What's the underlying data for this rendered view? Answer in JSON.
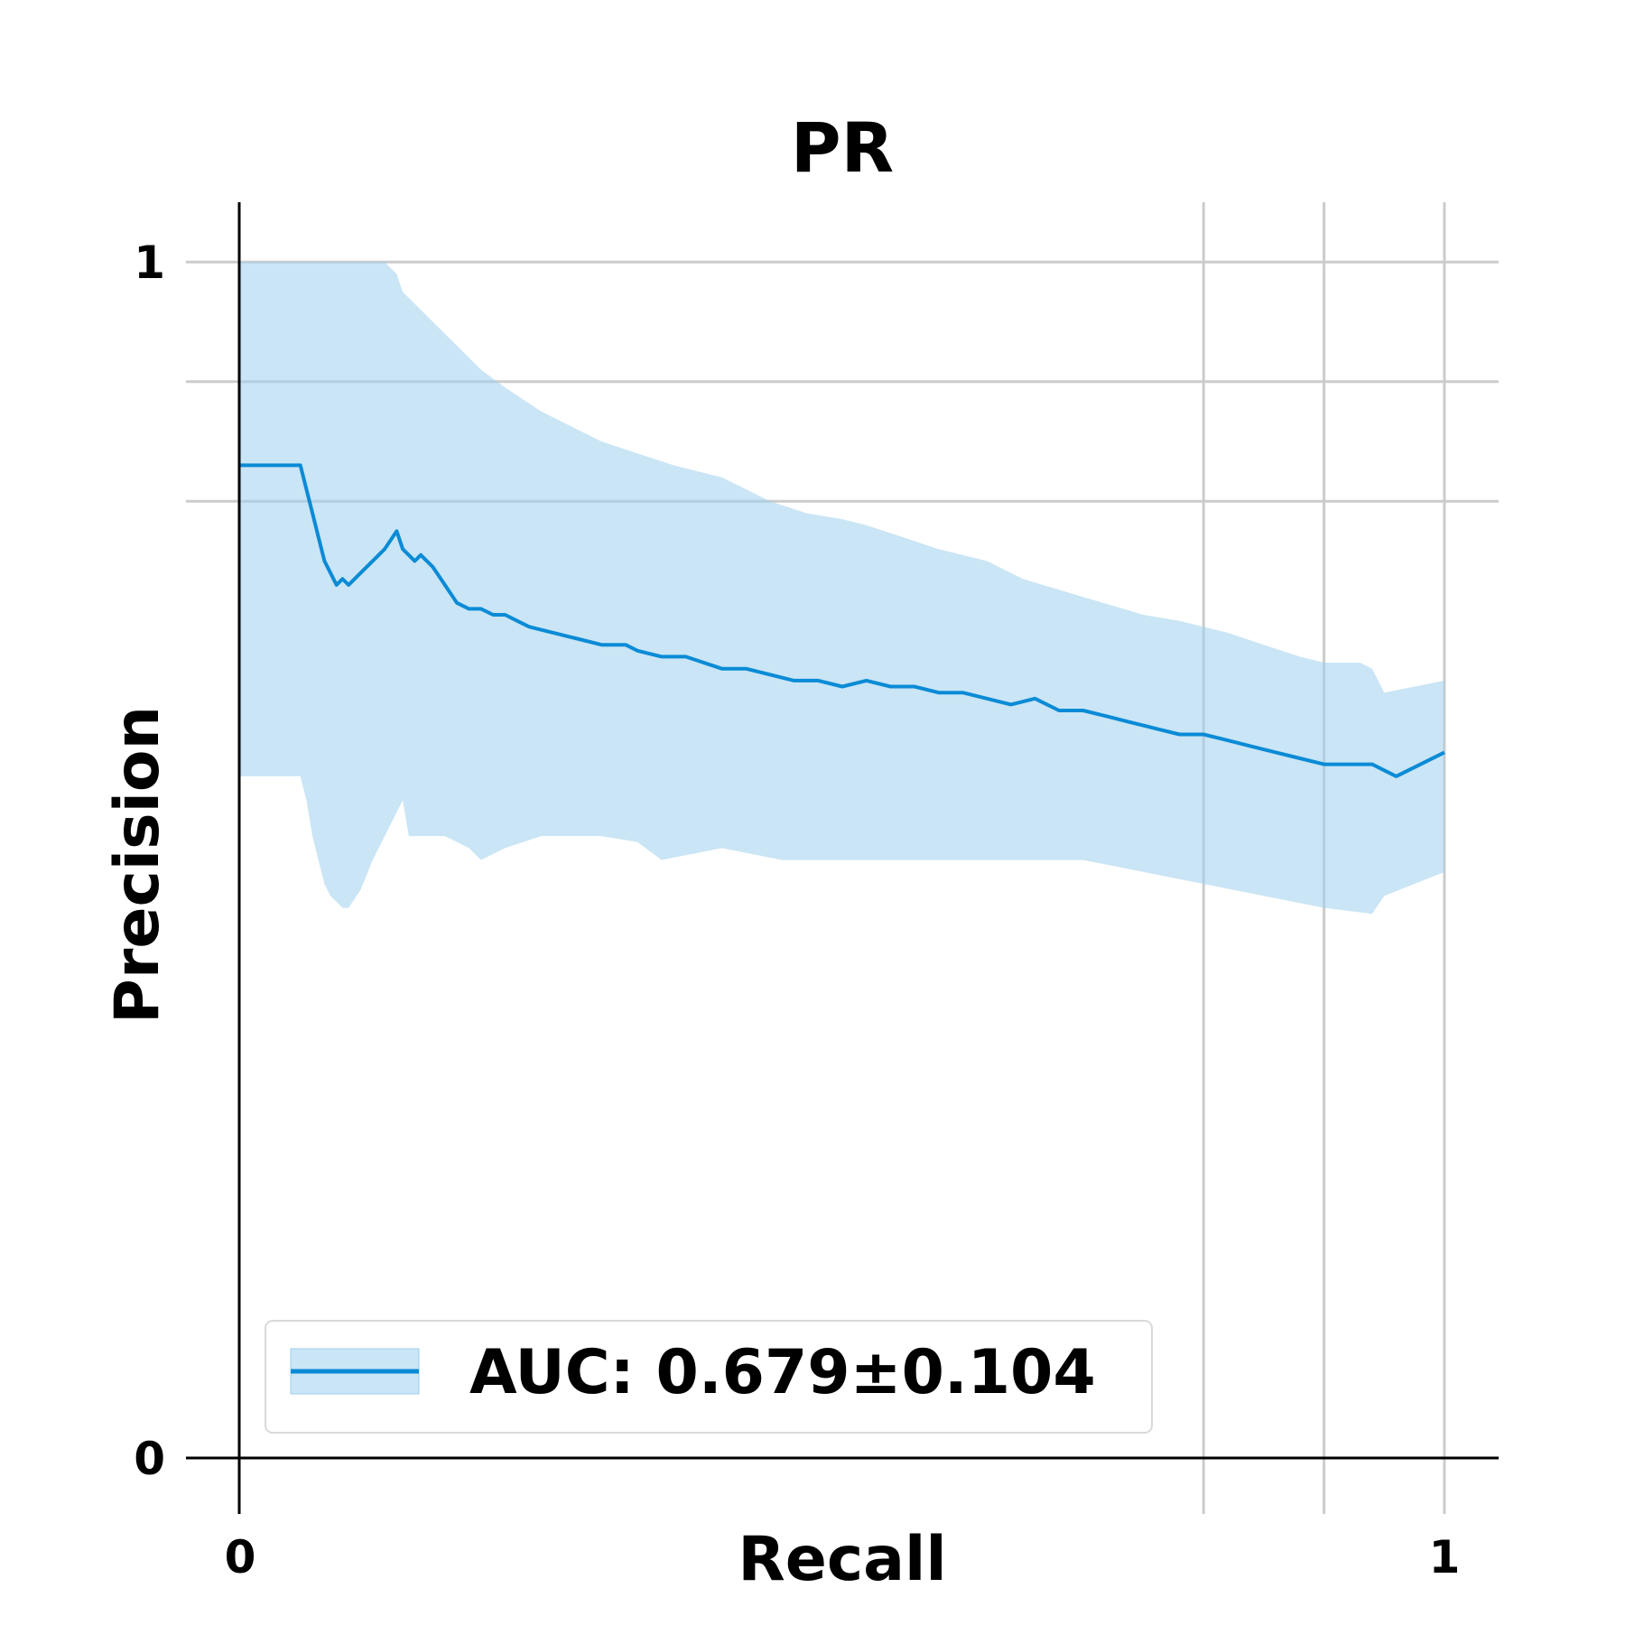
{
  "chart_data": {
    "type": "line",
    "title": "PR",
    "xlabel": "Recall",
    "ylabel": "Precision",
    "xlim": [
      -0.045,
      1.045
    ],
    "ylim": [
      0,
      1.05
    ],
    "xticks": [
      0,
      1
    ],
    "xtick_labels": [
      "0",
      "1"
    ],
    "yticks": [
      0,
      1
    ],
    "ytick_labels": [
      "0",
      "1"
    ],
    "x_gridlines": [
      0.8,
      0.9,
      1.0
    ],
    "y_gridlines": [
      0.8,
      0.9,
      1.0
    ],
    "legend": {
      "location": "lower-left",
      "label": "AUC: 0.679±0.104"
    },
    "colors": {
      "line": "#0a8bd6",
      "band": "#9fcfec"
    },
    "series": [
      {
        "name": "mean",
        "x": [
          0,
          0.05,
          0.055,
          0.06,
          0.065,
          0.07,
          0.075,
          0.08,
          0.085,
          0.09,
          0.1,
          0.11,
          0.12,
          0.13,
          0.135,
          0.14,
          0.145,
          0.15,
          0.16,
          0.17,
          0.18,
          0.19,
          0.2,
          0.21,
          0.22,
          0.23,
          0.24,
          0.26,
          0.28,
          0.3,
          0.32,
          0.33,
          0.35,
          0.37,
          0.4,
          0.42,
          0.44,
          0.46,
          0.48,
          0.5,
          0.52,
          0.54,
          0.56,
          0.58,
          0.6,
          0.62,
          0.64,
          0.66,
          0.68,
          0.7,
          0.72,
          0.74,
          0.76,
          0.78,
          0.8,
          0.82,
          0.84,
          0.86,
          0.88,
          0.9,
          0.92,
          0.94,
          0.95,
          0.96,
          1.0
        ],
        "y": [
          0.83,
          0.83,
          0.81,
          0.79,
          0.77,
          0.75,
          0.74,
          0.73,
          0.735,
          0.73,
          0.74,
          0.75,
          0.76,
          0.775,
          0.76,
          0.755,
          0.75,
          0.755,
          0.745,
          0.73,
          0.715,
          0.71,
          0.71,
          0.705,
          0.705,
          0.7,
          0.695,
          0.69,
          0.685,
          0.68,
          0.68,
          0.675,
          0.67,
          0.67,
          0.66,
          0.66,
          0.655,
          0.65,
          0.65,
          0.645,
          0.65,
          0.645,
          0.645,
          0.64,
          0.64,
          0.635,
          0.63,
          0.635,
          0.625,
          0.625,
          0.62,
          0.615,
          0.61,
          0.605,
          0.605,
          0.6,
          0.595,
          0.59,
          0.585,
          0.58,
          0.58,
          0.58,
          0.575,
          0.57,
          0.59
        ]
      },
      {
        "name": "upper",
        "x": [
          0,
          0.05,
          0.1,
          0.12,
          0.13,
          0.135,
          0.14,
          0.15,
          0.17,
          0.19,
          0.2,
          0.22,
          0.25,
          0.28,
          0.3,
          0.33,
          0.36,
          0.38,
          0.4,
          0.44,
          0.47,
          0.5,
          0.52,
          0.55,
          0.58,
          0.6,
          0.62,
          0.65,
          0.7,
          0.75,
          0.78,
          0.8,
          0.82,
          0.85,
          0.88,
          0.9,
          0.93,
          0.94,
          0.95,
          1.0
        ],
        "y": [
          1.0,
          1.0,
          1.0,
          1.0,
          0.99,
          0.975,
          0.97,
          0.96,
          0.94,
          0.92,
          0.91,
          0.895,
          0.875,
          0.86,
          0.85,
          0.84,
          0.83,
          0.825,
          0.82,
          0.8,
          0.79,
          0.785,
          0.78,
          0.77,
          0.76,
          0.755,
          0.75,
          0.735,
          0.72,
          0.705,
          0.7,
          0.695,
          0.69,
          0.68,
          0.67,
          0.665,
          0.665,
          0.66,
          0.64,
          0.65
        ]
      },
      {
        "name": "lower",
        "x": [
          0,
          0.05,
          0.055,
          0.06,
          0.065,
          0.07,
          0.075,
          0.08,
          0.085,
          0.09,
          0.1,
          0.11,
          0.12,
          0.13,
          0.135,
          0.14,
          0.15,
          0.17,
          0.19,
          0.2,
          0.22,
          0.25,
          0.28,
          0.3,
          0.33,
          0.35,
          0.4,
          0.45,
          0.5,
          0.55,
          0.6,
          0.65,
          0.7,
          0.75,
          0.8,
          0.85,
          0.9,
          0.94,
          0.95,
          1.0
        ],
        "y": [
          0.57,
          0.57,
          0.55,
          0.52,
          0.5,
          0.48,
          0.47,
          0.465,
          0.46,
          0.46,
          0.475,
          0.5,
          0.52,
          0.54,
          0.55,
          0.52,
          0.52,
          0.52,
          0.51,
          0.5,
          0.51,
          0.52,
          0.52,
          0.52,
          0.515,
          0.5,
          0.51,
          0.5,
          0.5,
          0.5,
          0.5,
          0.5,
          0.5,
          0.49,
          0.48,
          0.47,
          0.46,
          0.455,
          0.47,
          0.49
        ]
      }
    ]
  }
}
